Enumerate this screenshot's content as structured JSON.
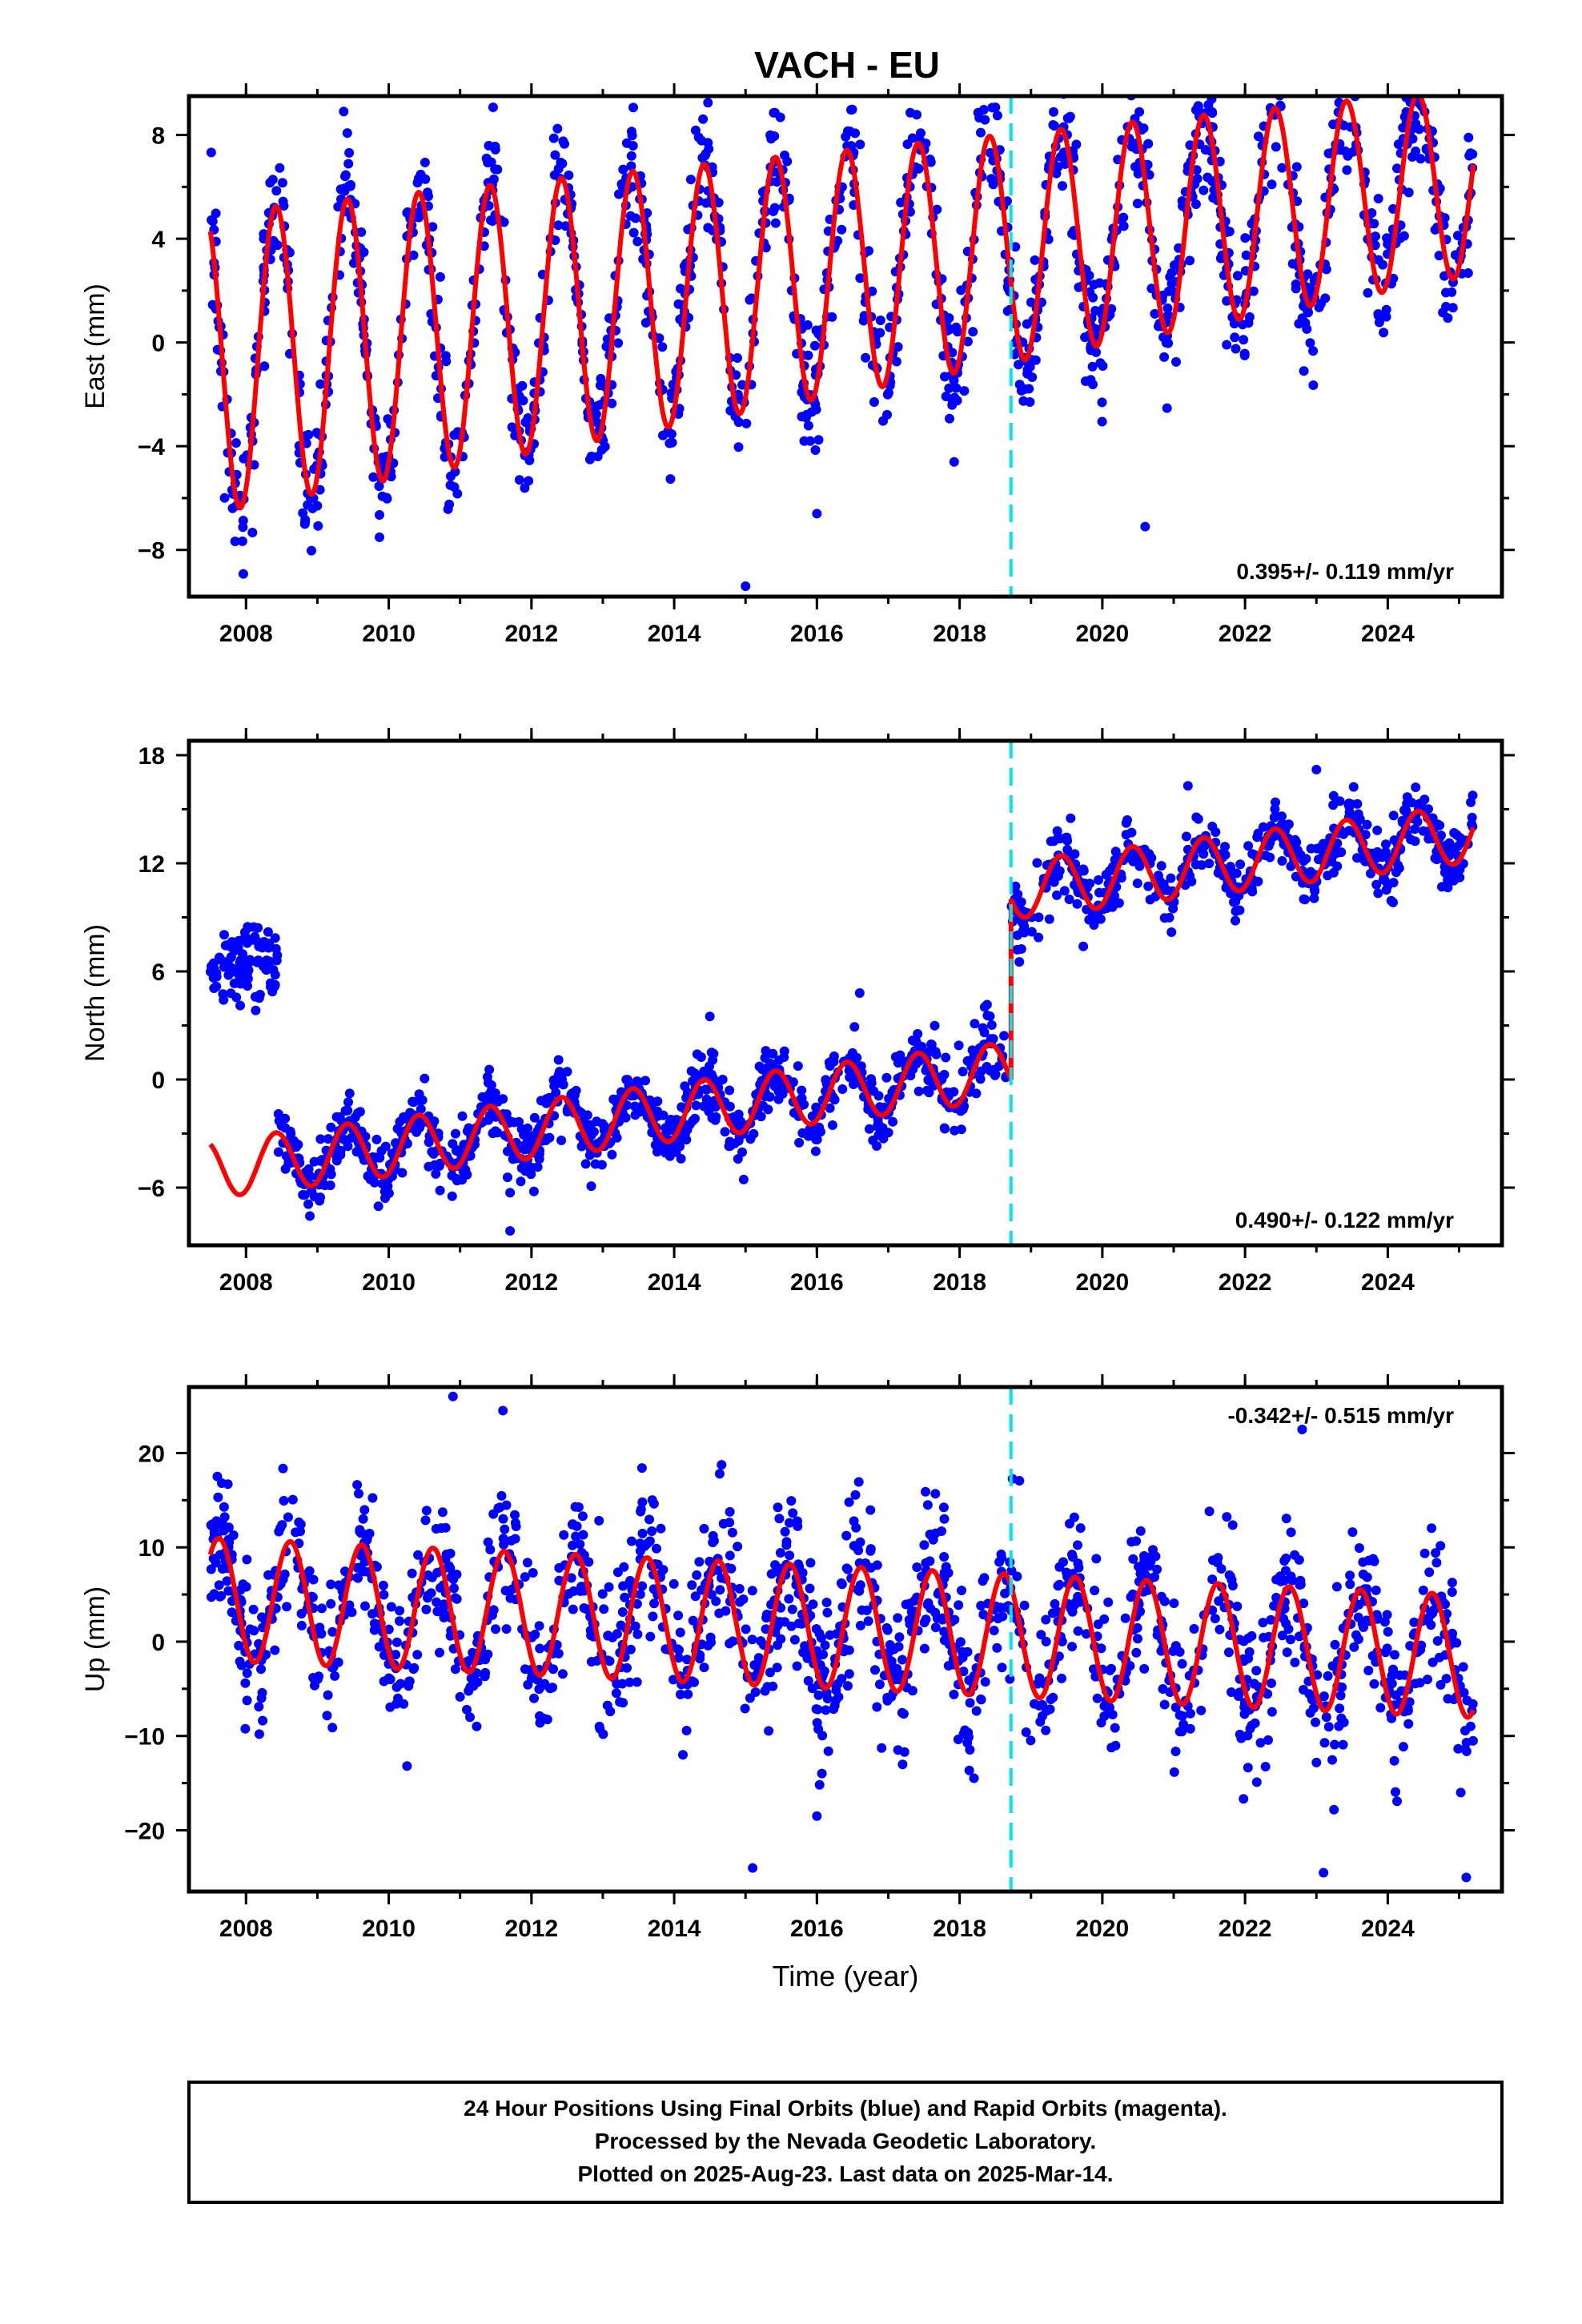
{
  "title": "VACH - EU",
  "colors": {
    "data": "#0000ff",
    "model": "#ff0000",
    "offset": "#00e5ee",
    "frame": "#000000"
  },
  "chart_data": [
    {
      "type": "scatter",
      "ylabel": "East (mm)",
      "rate": "0.395+/- 0.119 mm/yr",
      "rate_position": "bottom-right",
      "xlim": [
        2007.2,
        2025.6
      ],
      "ylim": [
        -9.8,
        9.5
      ],
      "yticks": [
        -8,
        -4,
        0,
        4,
        8
      ],
      "ytick_labels": [
        "−8",
        "−4",
        "0",
        "4",
        "8"
      ],
      "xticks": [
        2008,
        2010,
        2012,
        2014,
        2016,
        2018,
        2020,
        2022,
        2024
      ],
      "xtick_labels": [
        "2008",
        "2010",
        "2012",
        "2014",
        "2016",
        "2018",
        "2020",
        "2022",
        "2024"
      ],
      "offset_epoch": 2018.72,
      "model": {
        "base0": -0.8,
        "rate": 0.395,
        "jump": 0,
        "amp_start": 5.8,
        "amp_end": 3.6,
        "phase_peak": 0.42,
        "noise": 1.2
      },
      "outliers": [
        [
          2015.0,
          -9.4
        ],
        [
          2022.5,
          9.1
        ],
        [
          2016.0,
          -6.6
        ],
        [
          2020.6,
          -7.1
        ]
      ]
    },
    {
      "type": "scatter",
      "ylabel": "North (mm)",
      "rate": "0.490+/- 0.122 mm/yr",
      "rate_position": "bottom-right",
      "xlim": [
        2007.2,
        2025.6
      ],
      "ylim": [
        -9.2,
        18.8
      ],
      "yticks": [
        -6,
        0,
        6,
        12,
        18
      ],
      "ytick_labels": [
        "−6",
        "0",
        "6",
        "12",
        "18"
      ],
      "xticks": [
        2008,
        2010,
        2012,
        2014,
        2016,
        2018,
        2020,
        2022,
        2024
      ],
      "xtick_labels": [
        "2008",
        "2010",
        "2012",
        "2014",
        "2016",
        "2018",
        "2020",
        "2022",
        "2024"
      ],
      "offset_epoch": 2018.72,
      "model": {
        "base0": -5.0,
        "rate": 0.49,
        "jump": 10.0,
        "amp_start": 1.6,
        "amp_end": 1.6,
        "phase_peak": 0.42,
        "noise": 0.9,
        "early_cluster": {
          "x": [
            2007.5,
            2008.45
          ],
          "y_mean": 6.5,
          "y_spread": 1.1
        }
      },
      "outliers": [
        [
          2014.5,
          3.5
        ],
        [
          2016.6,
          4.8
        ],
        [
          2011.7,
          -8.4
        ],
        [
          2021.2,
          16.3
        ],
        [
          2023.0,
          17.2
        ]
      ]
    },
    {
      "type": "scatter",
      "ylabel": "Up (mm)",
      "rate": "-0.342+/- 0.515 mm/yr",
      "rate_position": "top-right",
      "xlabel": "Time (year)",
      "xlim": [
        2007.2,
        2025.6
      ],
      "ylim": [
        -26.5,
        27.0
      ],
      "yticks": [
        -20,
        -10,
        0,
        10,
        20
      ],
      "ytick_labels": [
        "−20",
        "−10",
        "0",
        "10",
        "20"
      ],
      "xticks": [
        2008,
        2010,
        2012,
        2014,
        2016,
        2018,
        2020,
        2022,
        2024
      ],
      "xtick_labels": [
        "2008",
        "2010",
        "2012",
        "2014",
        "2016",
        "2018",
        "2020",
        "2022",
        "2024"
      ],
      "offset_epoch": 2018.72,
      "model": {
        "base0": 4.5,
        "rate": -0.342,
        "jump": 0,
        "amp_start": 6.5,
        "amp_end": 6.5,
        "phase_peak": 0.62,
        "noise": 4.0
      },
      "outliers": [
        [
          2010.9,
          26.0
        ],
        [
          2011.6,
          24.5
        ],
        [
          2022.8,
          22.5
        ],
        [
          2015.1,
          -24.0
        ],
        [
          2023.1,
          -24.5
        ],
        [
          2025.1,
          -25.0
        ],
        [
          2016.0,
          -18.5
        ]
      ]
    }
  ],
  "footer": {
    "line1": "24 Hour Positions Using Final Orbits (blue) and Rapid Orbits (magenta).",
    "line2": "Processed by the Nevada Geodetic Laboratory.",
    "line3": "Plotted on 2025-Aug-23. Last data on 2025-Mar-14."
  }
}
